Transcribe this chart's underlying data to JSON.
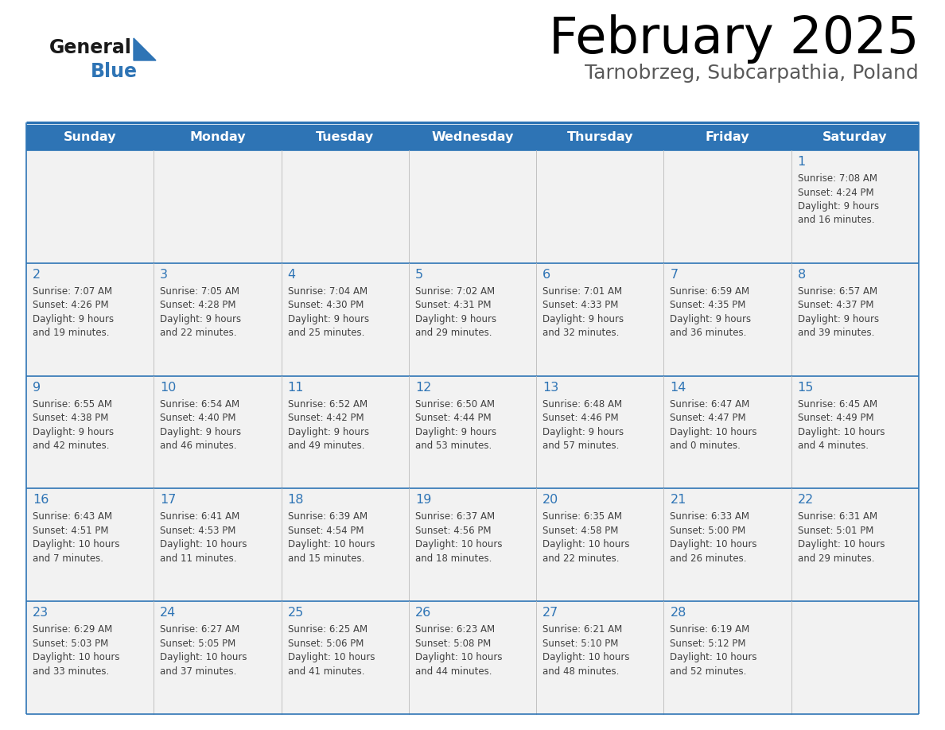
{
  "title": "February 2025",
  "subtitle": "Tarnobrzeg, Subcarpathia, Poland",
  "header_color": "#2E74B5",
  "header_text_color": "#FFFFFF",
  "cell_bg_color": "#F2F2F2",
  "border_color": "#2E74B5",
  "row_border_color": "#2E74B5",
  "title_color": "#000000",
  "subtitle_color": "#595959",
  "day_number_color": "#2E74B5",
  "cell_text_color": "#404040",
  "days_of_week": [
    "Sunday",
    "Monday",
    "Tuesday",
    "Wednesday",
    "Thursday",
    "Friday",
    "Saturday"
  ],
  "calendar_data": [
    [
      null,
      null,
      null,
      null,
      null,
      null,
      {
        "day": 1,
        "sunrise": "7:08 AM",
        "sunset": "4:24 PM",
        "daylight": "9 hours\nand 16 minutes."
      }
    ],
    [
      {
        "day": 2,
        "sunrise": "7:07 AM",
        "sunset": "4:26 PM",
        "daylight": "9 hours\nand 19 minutes."
      },
      {
        "day": 3,
        "sunrise": "7:05 AM",
        "sunset": "4:28 PM",
        "daylight": "9 hours\nand 22 minutes."
      },
      {
        "day": 4,
        "sunrise": "7:04 AM",
        "sunset": "4:30 PM",
        "daylight": "9 hours\nand 25 minutes."
      },
      {
        "day": 5,
        "sunrise": "7:02 AM",
        "sunset": "4:31 PM",
        "daylight": "9 hours\nand 29 minutes."
      },
      {
        "day": 6,
        "sunrise": "7:01 AM",
        "sunset": "4:33 PM",
        "daylight": "9 hours\nand 32 minutes."
      },
      {
        "day": 7,
        "sunrise": "6:59 AM",
        "sunset": "4:35 PM",
        "daylight": "9 hours\nand 36 minutes."
      },
      {
        "day": 8,
        "sunrise": "6:57 AM",
        "sunset": "4:37 PM",
        "daylight": "9 hours\nand 39 minutes."
      }
    ],
    [
      {
        "day": 9,
        "sunrise": "6:55 AM",
        "sunset": "4:38 PM",
        "daylight": "9 hours\nand 42 minutes."
      },
      {
        "day": 10,
        "sunrise": "6:54 AM",
        "sunset": "4:40 PM",
        "daylight": "9 hours\nand 46 minutes."
      },
      {
        "day": 11,
        "sunrise": "6:52 AM",
        "sunset": "4:42 PM",
        "daylight": "9 hours\nand 49 minutes."
      },
      {
        "day": 12,
        "sunrise": "6:50 AM",
        "sunset": "4:44 PM",
        "daylight": "9 hours\nand 53 minutes."
      },
      {
        "day": 13,
        "sunrise": "6:48 AM",
        "sunset": "4:46 PM",
        "daylight": "9 hours\nand 57 minutes."
      },
      {
        "day": 14,
        "sunrise": "6:47 AM",
        "sunset": "4:47 PM",
        "daylight": "10 hours\nand 0 minutes."
      },
      {
        "day": 15,
        "sunrise": "6:45 AM",
        "sunset": "4:49 PM",
        "daylight": "10 hours\nand 4 minutes."
      }
    ],
    [
      {
        "day": 16,
        "sunrise": "6:43 AM",
        "sunset": "4:51 PM",
        "daylight": "10 hours\nand 7 minutes."
      },
      {
        "day": 17,
        "sunrise": "6:41 AM",
        "sunset": "4:53 PM",
        "daylight": "10 hours\nand 11 minutes."
      },
      {
        "day": 18,
        "sunrise": "6:39 AM",
        "sunset": "4:54 PM",
        "daylight": "10 hours\nand 15 minutes."
      },
      {
        "day": 19,
        "sunrise": "6:37 AM",
        "sunset": "4:56 PM",
        "daylight": "10 hours\nand 18 minutes."
      },
      {
        "day": 20,
        "sunrise": "6:35 AM",
        "sunset": "4:58 PM",
        "daylight": "10 hours\nand 22 minutes."
      },
      {
        "day": 21,
        "sunrise": "6:33 AM",
        "sunset": "5:00 PM",
        "daylight": "10 hours\nand 26 minutes."
      },
      {
        "day": 22,
        "sunrise": "6:31 AM",
        "sunset": "5:01 PM",
        "daylight": "10 hours\nand 29 minutes."
      }
    ],
    [
      {
        "day": 23,
        "sunrise": "6:29 AM",
        "sunset": "5:03 PM",
        "daylight": "10 hours\nand 33 minutes."
      },
      {
        "day": 24,
        "sunrise": "6:27 AM",
        "sunset": "5:05 PM",
        "daylight": "10 hours\nand 37 minutes."
      },
      {
        "day": 25,
        "sunrise": "6:25 AM",
        "sunset": "5:06 PM",
        "daylight": "10 hours\nand 41 minutes."
      },
      {
        "day": 26,
        "sunrise": "6:23 AM",
        "sunset": "5:08 PM",
        "daylight": "10 hours\nand 44 minutes."
      },
      {
        "day": 27,
        "sunrise": "6:21 AM",
        "sunset": "5:10 PM",
        "daylight": "10 hours\nand 48 minutes."
      },
      {
        "day": 28,
        "sunrise": "6:19 AM",
        "sunset": "5:12 PM",
        "daylight": "10 hours\nand 52 minutes."
      },
      null
    ]
  ],
  "logo_general_color": "#1a1a1a",
  "logo_blue_color": "#2E74B5",
  "logo_triangle_color": "#2E74B5"
}
